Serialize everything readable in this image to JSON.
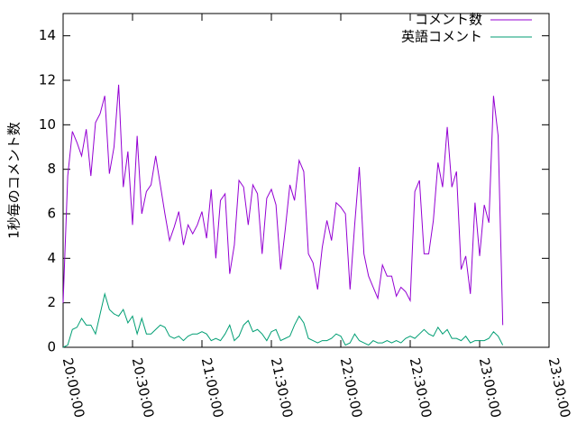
{
  "chart_data": {
    "type": "line",
    "ylabel": "1秒毎のコメント数",
    "x": [
      "20:00:00",
      "20:02:00",
      "20:04:00",
      "20:06:00",
      "20:08:00",
      "20:10:00",
      "20:12:00",
      "20:14:00",
      "20:16:00",
      "20:18:00",
      "20:20:00",
      "20:22:00",
      "20:24:00",
      "20:26:00",
      "20:28:00",
      "20:30:00",
      "20:32:00",
      "20:34:00",
      "20:36:00",
      "20:38:00",
      "20:40:00",
      "20:42:00",
      "20:44:00",
      "20:46:00",
      "20:48:00",
      "20:50:00",
      "20:52:00",
      "20:54:00",
      "20:56:00",
      "20:58:00",
      "21:00:00",
      "21:02:00",
      "21:04:00",
      "21:06:00",
      "21:08:00",
      "21:10:00",
      "21:12:00",
      "21:14:00",
      "21:16:00",
      "21:18:00",
      "21:20:00",
      "21:22:00",
      "21:24:00",
      "21:26:00",
      "21:28:00",
      "21:30:00",
      "21:32:00",
      "21:34:00",
      "21:36:00",
      "21:38:00",
      "21:40:00",
      "21:42:00",
      "21:44:00",
      "21:46:00",
      "21:48:00",
      "21:50:00",
      "21:52:00",
      "21:54:00",
      "21:56:00",
      "21:58:00",
      "22:00:00",
      "22:02:00",
      "22:04:00",
      "22:06:00",
      "22:08:00",
      "22:10:00",
      "22:12:00",
      "22:14:00",
      "22:16:00",
      "22:18:00",
      "22:20:00",
      "22:22:00",
      "22:24:00",
      "22:26:00",
      "22:28:00",
      "22:30:00",
      "22:32:00",
      "22:34:00",
      "22:36:00",
      "22:38:00",
      "22:40:00",
      "22:42:00",
      "22:44:00",
      "22:46:00",
      "22:48:00",
      "22:50:00",
      "22:52:00",
      "22:54:00",
      "22:56:00",
      "22:58:00",
      "23:00:00",
      "23:02:00",
      "23:04:00",
      "23:06:00",
      "23:08:00",
      "23:10:00"
    ],
    "series": [
      {
        "name": "コメント数",
        "color": "#9400d3",
        "values": [
          2.0,
          7.7,
          9.7,
          9.2,
          8.6,
          9.8,
          7.7,
          10.1,
          10.5,
          11.3,
          7.8,
          9.0,
          11.8,
          7.2,
          8.8,
          5.5,
          9.5,
          6.0,
          7.0,
          7.3,
          8.6,
          7.3,
          6.0,
          4.8,
          5.4,
          6.1,
          4.6,
          5.5,
          5.1,
          5.5,
          6.1,
          4.9,
          7.1,
          4.0,
          6.6,
          6.9,
          3.3,
          4.6,
          7.5,
          7.2,
          5.5,
          7.3,
          6.9,
          4.2,
          6.7,
          7.1,
          6.4,
          3.5,
          5.3,
          7.3,
          6.6,
          8.4,
          7.9,
          4.2,
          3.8,
          2.6,
          4.5,
          5.7,
          4.8,
          6.5,
          6.3,
          6.0,
          2.6,
          5.5,
          8.1,
          4.2,
          3.2,
          2.7,
          2.2,
          3.7,
          3.2,
          3.2,
          2.3,
          2.7,
          2.5,
          2.1,
          7.0,
          7.5,
          4.2,
          4.2,
          5.7,
          8.3,
          7.2,
          9.9,
          7.2,
          7.9,
          3.5,
          4.1,
          2.4,
          6.5,
          4.1,
          6.4,
          5.6,
          11.3,
          9.5,
          1.0
        ]
      },
      {
        "name": "英語コメント",
        "color": "#009e73",
        "values": [
          0,
          0.1,
          0.8,
          0.9,
          1.3,
          1.0,
          1.0,
          0.6,
          1.5,
          2.4,
          1.7,
          1.5,
          1.4,
          1.7,
          1.1,
          1.4,
          0.6,
          1.3,
          0.6,
          0.6,
          0.8,
          1.0,
          0.9,
          0.5,
          0.4,
          0.5,
          0.3,
          0.5,
          0.6,
          0.6,
          0.7,
          0.6,
          0.3,
          0.4,
          0.3,
          0.6,
          1.0,
          0.3,
          0.5,
          1.0,
          1.2,
          0.7,
          0.8,
          0.6,
          0.3,
          0.7,
          0.8,
          0.3,
          0.4,
          0.5,
          1.0,
          1.4,
          1.1,
          0.4,
          0.3,
          0.2,
          0.3,
          0.3,
          0.4,
          0.6,
          0.5,
          0.1,
          0.2,
          0.6,
          0.3,
          0.2,
          0.1,
          0.3,
          0.2,
          0.2,
          0.3,
          0.2,
          0.3,
          0.2,
          0.4,
          0.5,
          0.4,
          0.6,
          0.8,
          0.6,
          0.5,
          0.9,
          0.6,
          0.8,
          0.4,
          0.4,
          0.3,
          0.5,
          0.2,
          0.3,
          0.3,
          0.3,
          0.4,
          0.7,
          0.5,
          0.1
        ]
      }
    ],
    "xlim": [
      "20:00:00",
      "23:30:00"
    ],
    "xticks": [
      "20:00:00",
      "20:30:00",
      "21:00:00",
      "21:30:00",
      "22:00:00",
      "22:30:00",
      "23:00:00",
      "23:30:00"
    ],
    "ylim": [
      0,
      15
    ],
    "yticks": [
      0,
      2,
      4,
      6,
      8,
      10,
      12,
      14
    ],
    "legend": "top-right"
  }
}
